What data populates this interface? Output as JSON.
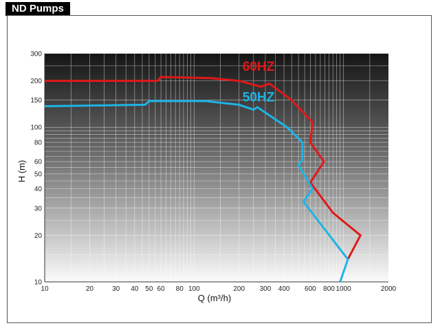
{
  "header": {
    "title": "ND Pumps"
  },
  "chart_data": {
    "type": "line",
    "xlabel": "Q (m³/h)",
    "ylabel": "H (m)",
    "xscale": "log",
    "yscale": "log",
    "xlim": [
      10,
      2000
    ],
    "ylim": [
      10,
      300
    ],
    "x_ticks": [
      10,
      20,
      30,
      40,
      50,
      60,
      80,
      100,
      200,
      300,
      400,
      600,
      800,
      1000,
      2000
    ],
    "x_tick_labels": [
      "10",
      "20",
      "30",
      "40",
      "50",
      "60",
      "80",
      "100",
      "200",
      "300",
      "400",
      "600",
      "800",
      "1000",
      "2000"
    ],
    "y_ticks": [
      10,
      20,
      30,
      40,
      50,
      60,
      80,
      100,
      150,
      200,
      300
    ],
    "y_tick_labels": [
      "10",
      "20",
      "30",
      "40",
      "50",
      "60",
      "80",
      "100",
      "150",
      "200",
      "300"
    ],
    "grid": true,
    "background": "dark-to-light gradient",
    "series": [
      {
        "name": "60HZ",
        "color": "#e01818",
        "points": [
          [
            10,
            200
          ],
          [
            57,
            200
          ],
          [
            60,
            212
          ],
          [
            130,
            208
          ],
          [
            200,
            200
          ],
          [
            280,
            183
          ],
          [
            320,
            192
          ],
          [
            450,
            150
          ],
          [
            620,
            108
          ],
          [
            600,
            80
          ],
          [
            740,
            60
          ],
          [
            600,
            44
          ],
          [
            850,
            28
          ],
          [
            1300,
            20
          ],
          [
            1070,
            14
          ]
        ]
      },
      {
        "name": "50HZ",
        "color": "#1eb4e6",
        "points": [
          [
            10,
            137
          ],
          [
            47,
            140
          ],
          [
            50,
            148
          ],
          [
            120,
            148
          ],
          [
            200,
            140
          ],
          [
            250,
            130
          ],
          [
            265,
            135
          ],
          [
            420,
            100
          ],
          [
            530,
            80
          ],
          [
            530,
            62
          ],
          [
            500,
            57
          ],
          [
            620,
            40
          ],
          [
            540,
            33
          ],
          [
            1070,
            14
          ],
          [
            950,
            10
          ]
        ]
      }
    ]
  }
}
